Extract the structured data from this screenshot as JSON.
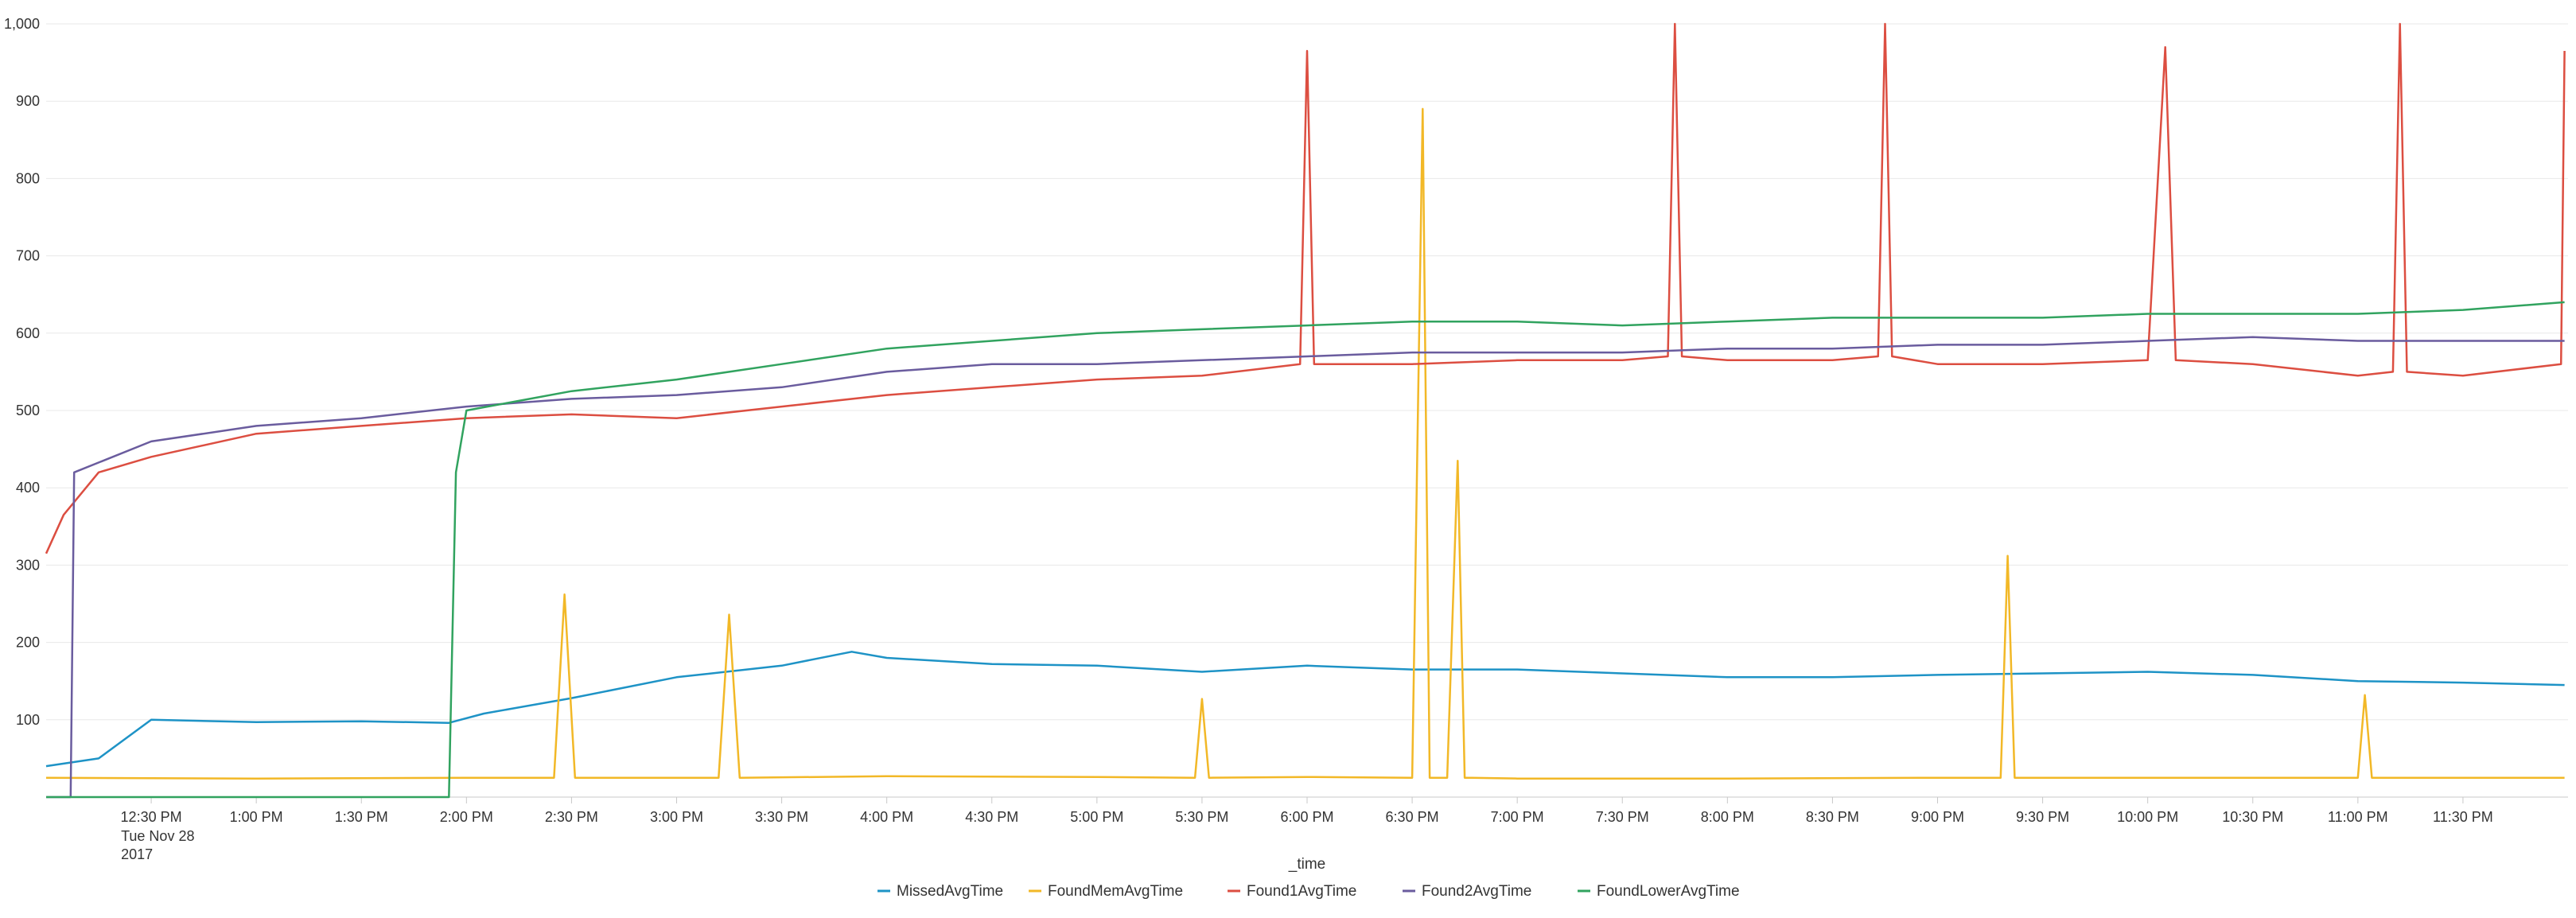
{
  "chart_data": {
    "type": "line",
    "xlabel": "_time",
    "ylabel": "",
    "ylim": [
      0,
      1000
    ],
    "y_ticks": [
      "100",
      "200",
      "300",
      "400",
      "500",
      "600",
      "700",
      "800",
      "900",
      "1,000"
    ],
    "x_ticks": [
      "12:30 PM",
      "1:00 PM",
      "1:30 PM",
      "2:00 PM",
      "2:30 PM",
      "3:00 PM",
      "3:30 PM",
      "4:00 PM",
      "4:30 PM",
      "5:00 PM",
      "5:30 PM",
      "6:00 PM",
      "6:30 PM",
      "7:00 PM",
      "7:30 PM",
      "8:00 PM",
      "8:30 PM",
      "9:00 PM",
      "9:30 PM",
      "10:00 PM",
      "10:30 PM",
      "11:00 PM",
      "11:30 PM"
    ],
    "x_date_lines": [
      "Tue Nov 28",
      "2017"
    ],
    "x_range": [
      "12:00 PM",
      "12:00 AM"
    ],
    "grid": "horizontal",
    "legend_position": "bottom",
    "series": [
      {
        "name": "MissedAvgTime",
        "color": "#1e93c6",
        "x": [
          "12:00 PM",
          "12:15 PM",
          "12:30 PM",
          "1:00 PM",
          "1:30 PM",
          "1:55 PM",
          "2:05 PM",
          "2:30 PM",
          "3:00 PM",
          "3:30 PM",
          "3:50 PM",
          "4:00 PM",
          "4:30 PM",
          "5:00 PM",
          "5:30 PM",
          "6:00 PM",
          "6:30 PM",
          "7:00 PM",
          "7:30 PM",
          "8:00 PM",
          "8:30 PM",
          "9:00 PM",
          "9:30 PM",
          "10:00 PM",
          "10:30 PM",
          "11:00 PM",
          "11:30 PM",
          "11:59 PM"
        ],
        "values": [
          40,
          50,
          100,
          97,
          98,
          96,
          108,
          128,
          155,
          170,
          188,
          180,
          172,
          170,
          162,
          170,
          165,
          165,
          160,
          155,
          155,
          158,
          160,
          162,
          158,
          150,
          148,
          145
        ]
      },
      {
        "name": "FoundMemAvgTime",
        "color": "#f2b827",
        "x": [
          "12:00 PM",
          "1:00 PM",
          "2:00 PM",
          "2:25 PM",
          "2:28 PM",
          "2:31 PM",
          "3:00 PM",
          "3:12 PM",
          "3:15 PM",
          "3:18 PM",
          "4:00 PM",
          "5:00 PM",
          "5:28 PM",
          "5:30 PM",
          "5:32 PM",
          "6:00 PM",
          "6:30 PM",
          "6:33 PM",
          "6:35 PM",
          "6:37 PM",
          "6:40 PM",
          "6:43 PM",
          "6:45 PM",
          "6:47 PM",
          "7:00 PM",
          "8:00 PM",
          "9:00 PM",
          "9:18 PM",
          "9:20 PM",
          "9:22 PM",
          "10:00 PM",
          "11:00 PM",
          "11:02 PM",
          "11:04 PM",
          "11:59 PM"
        ],
        "values": [
          25,
          24,
          25,
          25,
          262,
          25,
          25,
          25,
          236,
          25,
          27,
          26,
          25,
          127,
          25,
          26,
          25,
          890,
          25,
          25,
          25,
          435,
          25,
          25,
          24,
          24,
          25,
          25,
          312,
          25,
          25,
          25,
          132,
          25,
          25
        ]
      },
      {
        "name": "Found1AvgTime",
        "color": "#dc4e41",
        "x": [
          "12:00 PM",
          "12:05 PM",
          "12:15 PM",
          "12:30 PM",
          "1:00 PM",
          "1:30 PM",
          "2:00 PM",
          "2:30 PM",
          "3:00 PM",
          "3:30 PM",
          "4:00 PM",
          "4:30 PM",
          "5:00 PM",
          "5:30 PM",
          "5:58 PM",
          "6:00 PM",
          "6:02 PM",
          "6:30 PM",
          "7:00 PM",
          "7:30 PM",
          "7:43 PM",
          "7:45 PM",
          "7:47 PM",
          "8:00 PM",
          "8:30 PM",
          "8:43 PM",
          "8:45 PM",
          "8:47 PM",
          "9:00 PM",
          "9:30 PM",
          "10:00 PM",
          "10:05 PM",
          "10:08 PM",
          "10:30 PM",
          "11:00 PM",
          "11:10 PM",
          "11:12 PM",
          "11:14 PM",
          "11:30 PM",
          "11:58 PM",
          "11:59 PM"
        ],
        "values": [
          315,
          365,
          420,
          440,
          470,
          480,
          490,
          495,
          490,
          505,
          520,
          530,
          540,
          545,
          560,
          965,
          560,
          560,
          565,
          565,
          570,
          1000,
          570,
          565,
          565,
          570,
          1000,
          570,
          560,
          560,
          565,
          970,
          565,
          560,
          545,
          550,
          1000,
          550,
          545,
          560,
          965
        ]
      },
      {
        "name": "Found2AvgTime",
        "color": "#6a5c9e",
        "x": [
          "12:00 PM",
          "12:07 PM",
          "12:08 PM",
          "12:30 PM",
          "1:00 PM",
          "1:30 PM",
          "2:00 PM",
          "2:30 PM",
          "3:00 PM",
          "3:30 PM",
          "4:00 PM",
          "4:30 PM",
          "5:00 PM",
          "5:30 PM",
          "6:00 PM",
          "6:30 PM",
          "7:00 PM",
          "7:30 PM",
          "8:00 PM",
          "8:30 PM",
          "9:00 PM",
          "9:30 PM",
          "10:00 PM",
          "10:30 PM",
          "11:00 PM",
          "11:30 PM",
          "11:59 PM"
        ],
        "values": [
          0,
          0,
          420,
          460,
          480,
          490,
          505,
          515,
          520,
          530,
          550,
          560,
          560,
          565,
          570,
          575,
          575,
          575,
          580,
          580,
          585,
          585,
          590,
          595,
          590,
          590,
          590
        ]
      },
      {
        "name": "FoundLowerAvgTime",
        "color": "#31a35f",
        "x": [
          "12:00 PM",
          "1:00 PM",
          "1:55 PM",
          "1:57 PM",
          "2:00 PM",
          "2:30 PM",
          "3:00 PM",
          "3:30 PM",
          "4:00 PM",
          "4:30 PM",
          "5:00 PM",
          "5:30 PM",
          "6:00 PM",
          "6:30 PM",
          "7:00 PM",
          "7:30 PM",
          "8:00 PM",
          "8:30 PM",
          "9:00 PM",
          "9:30 PM",
          "10:00 PM",
          "10:30 PM",
          "11:00 PM",
          "11:30 PM",
          "11:59 PM"
        ],
        "values": [
          0,
          0,
          0,
          420,
          500,
          525,
          540,
          560,
          580,
          590,
          600,
          605,
          610,
          615,
          615,
          610,
          615,
          620,
          620,
          620,
          625,
          625,
          625,
          630,
          640
        ]
      }
    ]
  }
}
